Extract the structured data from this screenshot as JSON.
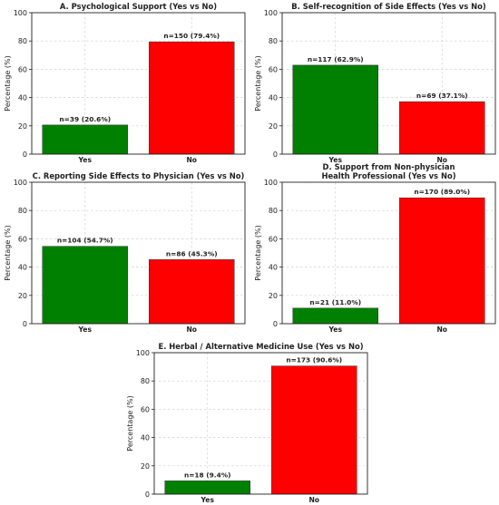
{
  "chart_data": [
    {
      "type": "bar",
      "title": "A. Psychological Support (Yes vs No)",
      "ylabel": "Percentage (%)",
      "ylim": [
        0,
        100
      ],
      "yticks": [
        0,
        20,
        40,
        60,
        80,
        100
      ],
      "grid": true,
      "categories": [
        "Yes",
        "No"
      ],
      "values": [
        20.6,
        79.4
      ],
      "labels": [
        "n=39 (20.6%)",
        "n=150 (79.4%)"
      ],
      "colors": [
        "#008000",
        "#ff0000"
      ]
    },
    {
      "type": "bar",
      "title": "B. Self-recognition of Side Effects (Yes vs No)",
      "ylabel": "Percentage (%)",
      "ylim": [
        0,
        100
      ],
      "yticks": [
        0,
        20,
        40,
        60,
        80,
        100
      ],
      "grid": true,
      "categories": [
        "Yes",
        "No"
      ],
      "values": [
        62.9,
        37.1
      ],
      "labels": [
        "n=117 (62.9%)",
        "n=69 (37.1%)"
      ],
      "colors": [
        "#008000",
        "#ff0000"
      ]
    },
    {
      "type": "bar",
      "title": "C. Reporting Side Effects to Physician (Yes vs No)",
      "ylabel": "Percentage (%)",
      "ylim": [
        0,
        100
      ],
      "yticks": [
        0,
        20,
        40,
        60,
        80,
        100
      ],
      "grid": true,
      "categories": [
        "Yes",
        "No"
      ],
      "values": [
        54.7,
        45.3
      ],
      "labels": [
        "n=104 (54.7%)",
        "n=86 (45.3%)"
      ],
      "colors": [
        "#008000",
        "#ff0000"
      ]
    },
    {
      "type": "bar",
      "title": "D. Support from Non-physician\nHealth Professional (Yes vs No)",
      "ylabel": "Percentage (%)",
      "ylim": [
        0,
        100
      ],
      "yticks": [
        0,
        20,
        40,
        60,
        80,
        100
      ],
      "grid": true,
      "categories": [
        "Yes",
        "No"
      ],
      "values": [
        11.0,
        89.0
      ],
      "labels": [
        "n=21 (11.0%)",
        "n=170 (89.0%)"
      ],
      "colors": [
        "#008000",
        "#ff0000"
      ]
    },
    {
      "type": "bar",
      "title": "E. Herbal / Alternative Medicine Use (Yes vs No)",
      "ylabel": "Percentage (%)",
      "ylim": [
        0,
        100
      ],
      "yticks": [
        0,
        20,
        40,
        60,
        80,
        100
      ],
      "grid": true,
      "categories": [
        "Yes",
        "No"
      ],
      "values": [
        9.4,
        90.6
      ],
      "labels": [
        "n=18 (9.4%)",
        "n=173 (90.6%)"
      ],
      "colors": [
        "#008000",
        "#ff0000"
      ]
    }
  ]
}
